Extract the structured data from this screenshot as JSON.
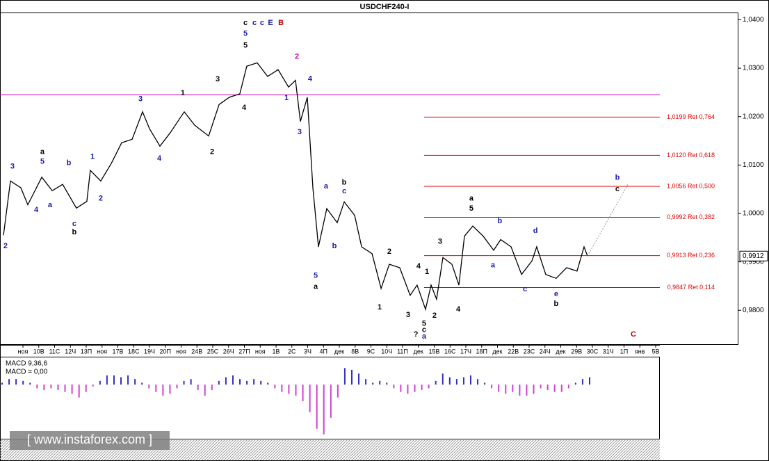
{
  "chart_data": {
    "type": "line",
    "title": "USDCHF240-I",
    "categories": [
      "ноя",
      "10В",
      "11С",
      "12Ч",
      "13П",
      "ноя",
      "17В",
      "18С",
      "19Ч",
      "20П",
      "ноя",
      "24В",
      "25С",
      "26Ч",
      "27П",
      "ноя",
      "1В",
      "2С",
      "3Ч",
      "4П",
      "дек",
      "8В",
      "9С",
      "10Ч",
      "11П",
      "дек",
      "15В",
      "16С",
      "17Ч",
      "18П",
      "дек",
      "22В",
      "23С",
      "24Ч",
      "дек",
      "29В",
      "30С",
      "31Ч",
      "1П",
      "янв",
      "5В"
    ],
    "xlim": [
      -1.45,
      45.23
    ],
    "ylim": [
      0.973,
      1.0415
    ],
    "yticks": [
      {
        "value": 1.04,
        "label": "1,0400"
      },
      {
        "value": 1.03,
        "label": "1,0300"
      },
      {
        "value": 1.02,
        "label": "1,0200"
      },
      {
        "value": 1.01,
        "label": "1,0100"
      },
      {
        "value": 1.0,
        "label": "1,0000"
      },
      {
        "value": 0.99,
        "label": "0,9900"
      },
      {
        "value": 0.98,
        "label": "0,9800"
      }
    ],
    "series": [
      {
        "name": "USDCHF",
        "color": "#000000",
        "x": [
          -1.23,
          -0.79,
          -0.13,
          0.31,
          1.19,
          1.85,
          2.51,
          3.38,
          4.04,
          4.26,
          4.92,
          5.58,
          6.24,
          6.9,
          7.56,
          8.0,
          8.66,
          9.32,
          10.2,
          10.86,
          11.74,
          12.4,
          13.05,
          13.71,
          14.15,
          14.81,
          15.47,
          16.13,
          16.79,
          17.23,
          17.54,
          17.98,
          18.33,
          18.68,
          19.21,
          19.87,
          20.31,
          20.97,
          21.41,
          22.07,
          22.64,
          23.16,
          23.82,
          24.48,
          24.92,
          25.45,
          25.8,
          26.15,
          26.55,
          27.12,
          27.56,
          27.91,
          28.44,
          29.1,
          29.76,
          30.2,
          30.86,
          31.52,
          32.18,
          32.48,
          33.05,
          33.71,
          34.37,
          35.03,
          35.47,
          35.69
        ],
        "values": [
          0.9955,
          1.0067,
          1.0053,
          1.0018,
          1.0075,
          1.0047,
          1.006,
          1.0011,
          1.0025,
          1.0089,
          1.0067,
          1.0103,
          1.0146,
          1.0153,
          1.021,
          1.0175,
          1.0139,
          1.0167,
          1.021,
          1.0182,
          1.016,
          1.0225,
          1.024,
          1.0247,
          1.0304,
          1.0311,
          1.0283,
          1.0297,
          1.0261,
          1.0275,
          1.019,
          1.024,
          1.0053,
          0.9931,
          1.001,
          0.9981,
          1.0024,
          0.9996,
          0.9931,
          0.9917,
          0.9845,
          0.9895,
          0.9888,
          0.9831,
          0.9852,
          0.9802,
          0.9852,
          0.9823,
          0.9909,
          0.9895,
          0.9852,
          0.9953,
          0.9974,
          0.9953,
          0.9924,
          0.9946,
          0.9931,
          0.9874,
          0.9902,
          0.9931,
          0.9874,
          0.9866,
          0.9888,
          0.9881,
          0.9931,
          0.9912
        ]
      }
    ],
    "hline": {
      "value": 1.0245,
      "color": "#c000c0"
    },
    "fib_start_x": 25.36,
    "fib_color": "#e00000",
    "fib_levels": [
      {
        "value": 1.0199,
        "label": "1,0199 Ret 0,764"
      },
      {
        "value": 1.012,
        "label": "1,0120 Ret 0,618"
      },
      {
        "value": 1.0056,
        "label": "1,0056 Ret 0,500"
      },
      {
        "value": 0.9992,
        "label": "0,9992 Ret 0,382"
      },
      {
        "value": 0.9913,
        "label": "0,9913 Ret 0,236"
      },
      {
        "value": 0.9847,
        "label": "0,9847 Ret 0,114"
      }
    ],
    "projection": {
      "x": [
        35.69,
        38.24
      ],
      "values": [
        0.9912,
        1.006
      ]
    },
    "last_price": {
      "value": 0.9912,
      "label": "0,9912"
    },
    "annotations": [
      {
        "text": "2",
        "x": -1.1,
        "y": 0.9932,
        "color": "#1a1aa6"
      },
      {
        "text": "3",
        "x": -0.66,
        "y": 1.0097,
        "color": "#1a1aa6"
      },
      {
        "text": "5",
        "x": 1.23,
        "y": 1.0107,
        "color": "#1a1aa6"
      },
      {
        "text": "a",
        "x": 1.23,
        "y": 1.0127,
        "color": "#000000"
      },
      {
        "text": "4",
        "x": 0.84,
        "y": 1.0007,
        "color": "#1a1aa6"
      },
      {
        "text": "a",
        "x": 1.71,
        "y": 1.0017,
        "color": "#1a1aa6"
      },
      {
        "text": "b",
        "x": 2.9,
        "y": 1.0104,
        "color": "#1a1aa6"
      },
      {
        "text": "c",
        "x": 3.25,
        "y": 0.9978,
        "color": "#1a1aa6"
      },
      {
        "text": "b",
        "x": 3.25,
        "y": 0.9961,
        "color": "#000000"
      },
      {
        "text": "1",
        "x": 4.4,
        "y": 1.0117,
        "color": "#1a1aa6"
      },
      {
        "text": "2",
        "x": 4.92,
        "y": 1.0031,
        "color": "#1a1aa6"
      },
      {
        "text": "3",
        "x": 7.43,
        "y": 1.0236,
        "color": "#1a1aa6"
      },
      {
        "text": "4",
        "x": 8.62,
        "y": 1.0113,
        "color": "#1a1aa6"
      },
      {
        "text": "1",
        "x": 10.11,
        "y": 1.0248,
        "color": "#000000"
      },
      {
        "text": "2",
        "x": 11.96,
        "y": 1.0127,
        "color": "#000000"
      },
      {
        "text": "3",
        "x": 12.31,
        "y": 1.0277,
        "color": "#000000"
      },
      {
        "text": "4",
        "x": 13.98,
        "y": 1.0218,
        "color": "#000000"
      },
      {
        "text": "5",
        "x": 14.07,
        "y": 1.0347,
        "color": "#000000"
      },
      {
        "text": "5",
        "x": 14.07,
        "y": 1.0371,
        "color": "#1a1aa6"
      },
      {
        "text": "c",
        "x": 14.07,
        "y": 1.0393,
        "color": "#000000"
      },
      {
        "text": "c",
        "x": 14.64,
        "y": 1.0393,
        "color": "#1a1aa6"
      },
      {
        "text": "c",
        "x": 15.12,
        "y": 1.0393,
        "color": "#1a1aa6"
      },
      {
        "text": "E",
        "x": 15.65,
        "y": 1.0393,
        "color": "#1a1aa6"
      },
      {
        "text": "B",
        "x": 16.31,
        "y": 1.0393,
        "color": "#c00000"
      },
      {
        "text": "2",
        "x": 17.32,
        "y": 1.0324,
        "color": "#c000c0"
      },
      {
        "text": "1",
        "x": 16.66,
        "y": 1.0238,
        "color": "#1a1aa6"
      },
      {
        "text": "4",
        "x": 18.15,
        "y": 1.0278,
        "color": "#1a1aa6"
      },
      {
        "text": "3",
        "x": 17.49,
        "y": 1.0168,
        "color": "#1a1aa6"
      },
      {
        "text": "5",
        "x": 18.51,
        "y": 0.9871,
        "color": "#1a1aa6"
      },
      {
        "text": "a",
        "x": 18.51,
        "y": 0.9848,
        "color": "#000000"
      },
      {
        "text": "a",
        "x": 19.16,
        "y": 1.0056,
        "color": "#1a1aa6"
      },
      {
        "text": "b",
        "x": 20.31,
        "y": 1.0064,
        "color": "#000000"
      },
      {
        "text": "c",
        "x": 20.31,
        "y": 1.0046,
        "color": "#1a1aa6"
      },
      {
        "text": "b",
        "x": 19.69,
        "y": 0.9932,
        "color": "#1a1aa6"
      },
      {
        "text": "2",
        "x": 23.16,
        "y": 0.9921,
        "color": "#000000"
      },
      {
        "text": "1",
        "x": 22.55,
        "y": 0.9806,
        "color": "#000000"
      },
      {
        "text": "3",
        "x": 24.35,
        "y": 0.979,
        "color": "#000000"
      },
      {
        "text": "4",
        "x": 25.01,
        "y": 0.9891,
        "color": "#000000"
      },
      {
        "text": "1",
        "x": 25.54,
        "y": 0.9879,
        "color": "#000000"
      },
      {
        "text": "2",
        "x": 26.02,
        "y": 0.9789,
        "color": "#000000"
      },
      {
        "text": "5",
        "x": 25.36,
        "y": 0.9772,
        "color": "#000000"
      },
      {
        "text": "c",
        "x": 25.36,
        "y": 0.9759,
        "color": "#000000"
      },
      {
        "text": "a",
        "x": 25.36,
        "y": 0.9746,
        "color": "#1a1aa6"
      },
      {
        "text": "?",
        "x": 24.84,
        "y": 0.975,
        "color": "#000000"
      },
      {
        "text": "3",
        "x": 26.37,
        "y": 0.9942,
        "color": "#000000"
      },
      {
        "text": "4",
        "x": 27.52,
        "y": 0.9802,
        "color": "#000000"
      },
      {
        "text": "5",
        "x": 28.35,
        "y": 1.001,
        "color": "#000000"
      },
      {
        "text": "a",
        "x": 28.35,
        "y": 1.0031,
        "color": "#000000"
      },
      {
        "text": "b",
        "x": 30.15,
        "y": 0.9984,
        "color": "#1a1aa6"
      },
      {
        "text": "a",
        "x": 29.71,
        "y": 0.9893,
        "color": "#1a1aa6"
      },
      {
        "text": "c",
        "x": 31.74,
        "y": 0.9843,
        "color": "#1a1aa6"
      },
      {
        "text": "d",
        "x": 32.4,
        "y": 0.9964,
        "color": "#1a1aa6"
      },
      {
        "text": "e",
        "x": 33.71,
        "y": 0.9833,
        "color": "#1a1aa6"
      },
      {
        "text": "b",
        "x": 33.71,
        "y": 0.9813,
        "color": "#000000"
      },
      {
        "text": "b",
        "x": 37.58,
        "y": 1.0074,
        "color": "#1a1aa6"
      },
      {
        "text": "c",
        "x": 37.58,
        "y": 1.005,
        "color": "#000000"
      },
      {
        "text": "C",
        "x": 38.59,
        "y": 0.975,
        "color": "#c00000"
      }
    ],
    "macd": {
      "type": "bar",
      "title": "MACD 9,36,6",
      "subtitle": "MACD = 0,00",
      "ylim": [
        -0.0029,
        0.0014
      ],
      "up_color": "#3030c0",
      "down_color": "#d040d0",
      "values": [
        0.0001,
        0.0003,
        0.0003,
        0.0002,
        0.0001,
        -0.0002,
        -0.0003,
        -0.0002,
        -0.0003,
        -0.0004,
        -0.0005,
        -0.0007,
        -0.0004,
        -0.0001,
        0.0002,
        0.0005,
        0.0005,
        0.0004,
        0.0005,
        0.0003,
        0.0001,
        -0.0002,
        -0.0004,
        -0.0006,
        -0.0005,
        -0.0002,
        0.0002,
        0.0003,
        -0.0003,
        -0.0006,
        -0.0003,
        0.0002,
        0.0004,
        0.0005,
        0.0003,
        0.0002,
        0.0003,
        0.0002,
        0.0001,
        -0.0002,
        -0.0004,
        -0.0005,
        -0.0006,
        -0.0009,
        -0.0015,
        -0.0024,
        -0.0027,
        -0.0018,
        -0.0007,
        0.0009,
        0.0008,
        0.0006,
        0.0003,
        0.0001,
        0.0002,
        0.0001,
        -0.0002,
        -0.0004,
        -0.0005,
        -0.0004,
        -0.0003,
        -0.0002,
        0.0002,
        0.0006,
        0.0004,
        0.0003,
        0.0004,
        0.0005,
        0.0003,
        0.0001,
        -0.0002,
        -0.0004,
        -0.0005,
        -0.0004,
        -0.0006,
        -0.0006,
        -0.0005,
        -0.0002,
        -0.0003,
        -0.0004,
        -0.0004,
        -0.0002,
        0.0001,
        0.0003,
        0.0004
      ]
    },
    "watermark": "[ www.instaforex.com ]"
  }
}
